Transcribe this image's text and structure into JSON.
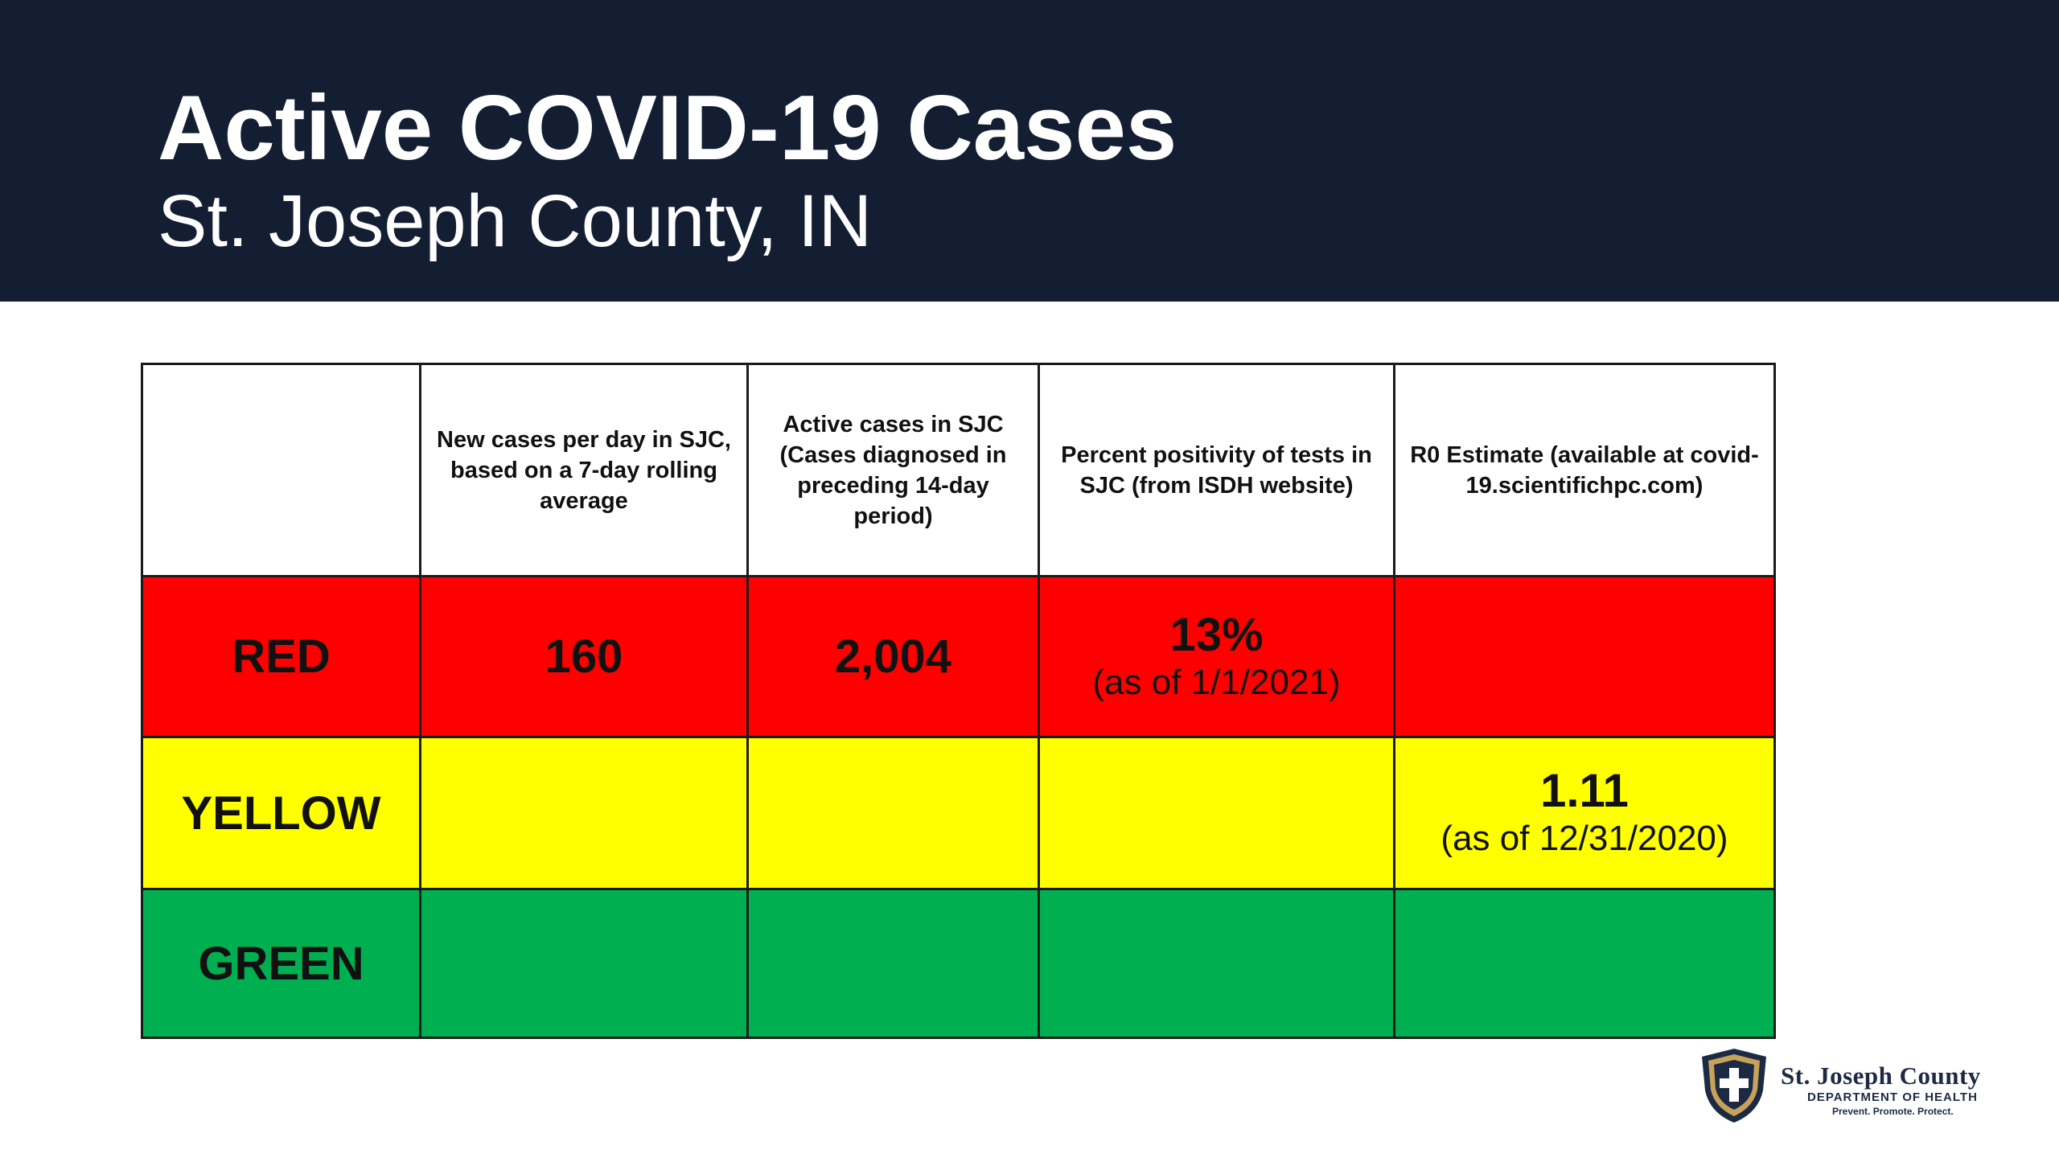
{
  "header": {
    "title": "Active COVID-19 Cases",
    "subtitle": "St. Joseph County, IN",
    "background_color": "#141e33"
  },
  "table": {
    "columns": [
      "",
      "New cases per day in SJC, based on a 7-day rolling average",
      "Active cases in SJC (Cases diagnosed in preceding 14-day period)",
      "Percent positivity of tests in SJC (from ISDH website)",
      "R0 Estimate (available at covid-19.scientifichpc.com)"
    ],
    "rows": [
      {
        "label": "RED",
        "color": "#fe0000",
        "new_cases": "160",
        "active_cases": "2,004",
        "positivity": "13%",
        "positivity_note": "(as of 1/1/2021)",
        "r0": "",
        "r0_note": ""
      },
      {
        "label": "YELLOW",
        "color": "#ffff00",
        "new_cases": "",
        "active_cases": "",
        "positivity": "",
        "positivity_note": "",
        "r0": "1.11",
        "r0_note": "(as of 12/31/2020)"
      },
      {
        "label": "GREEN",
        "color": "#00b050",
        "new_cases": "",
        "active_cases": "",
        "positivity": "",
        "positivity_note": "",
        "r0": "",
        "r0_note": ""
      }
    ]
  },
  "logo": {
    "name": "St. Joseph County",
    "department": "DEPARTMENT OF HEALTH",
    "tagline": "Prevent. Promote. Protect.",
    "icon": "shield-cross-icon"
  }
}
